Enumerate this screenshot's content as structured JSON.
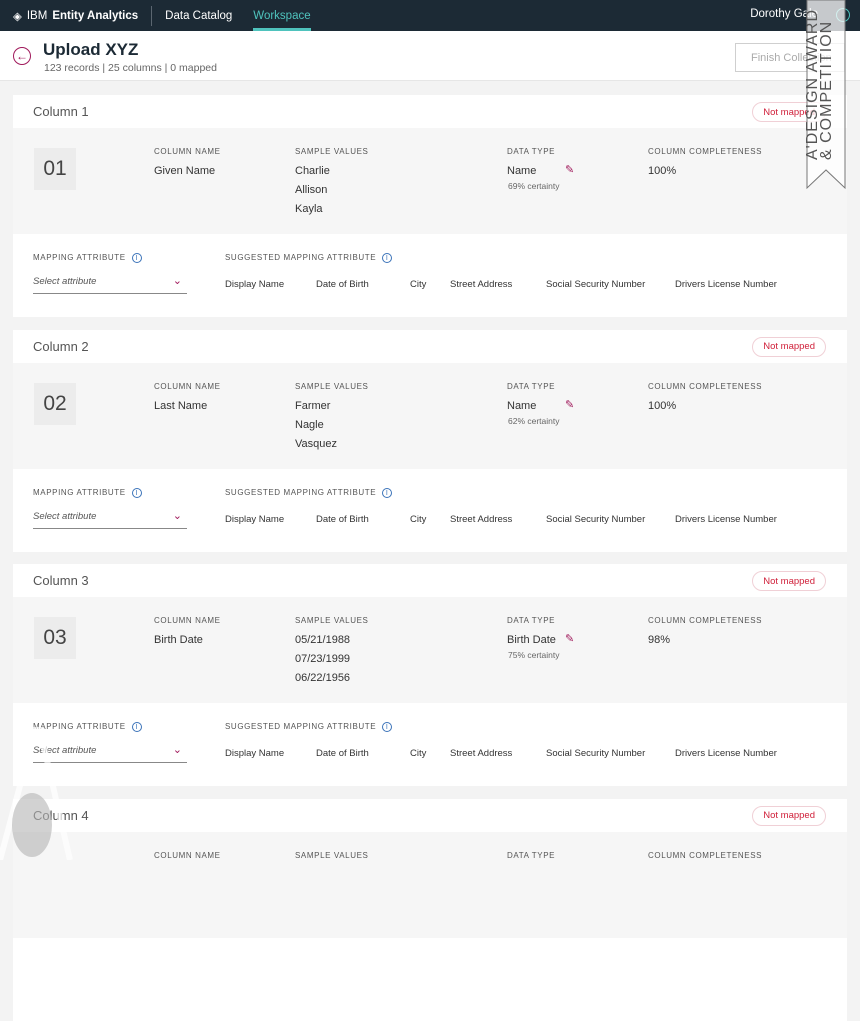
{
  "nav": {
    "brand_prefix": "IBM",
    "brand_name": "Entity Analytics",
    "links": [
      "Data Catalog",
      "Workspace"
    ],
    "active": "Workspace",
    "user": "Dorothy Gale"
  },
  "header": {
    "title": "Upload XYZ",
    "subtitle": "123 records | 25 columns | 0 mapped",
    "finish_label": "Finish Collection"
  },
  "labels": {
    "column_name": "COLUMN NAME",
    "sample_values": "SAMPLE VALUES",
    "data_type": "DATA TYPE",
    "completeness": "COLUMN COMPLETENESS",
    "mapping": "MAPPING ATTRIBUTE",
    "suggested": "SUGGESTED MAPPING ATTRIBUTE",
    "select_placeholder": "Select attribute",
    "status": "Not mapped"
  },
  "suggestions": [
    "Display Name",
    "Date of Birth",
    "City",
    "Street Address",
    "Social Security Number",
    "Drivers License Number"
  ],
  "columns": [
    {
      "title": "Column 1",
      "number": "01",
      "name": "Given Name",
      "samples": [
        "Charlie",
        "Allison",
        "Kayla"
      ],
      "type": "Name",
      "certainty": "69% certainty",
      "completeness": "100%"
    },
    {
      "title": "Column 2",
      "number": "02",
      "name": "Last Name",
      "samples": [
        "Farmer",
        "Nagle",
        "Vasquez"
      ],
      "type": "Name",
      "certainty": "62% certainty",
      "completeness": "100%"
    },
    {
      "title": "Column 3",
      "number": "03",
      "name": "Birth Date",
      "samples": [
        "05/21/1988",
        "07/23/1999",
        "06/22/1956"
      ],
      "type": "Birth Date",
      "certainty": "75% certainty",
      "completeness": "98%"
    },
    {
      "title": "Column 4"
    }
  ],
  "watermark": {
    "text1": "A'DESIGN AWARD",
    "text2": "& COMPETITION"
  }
}
